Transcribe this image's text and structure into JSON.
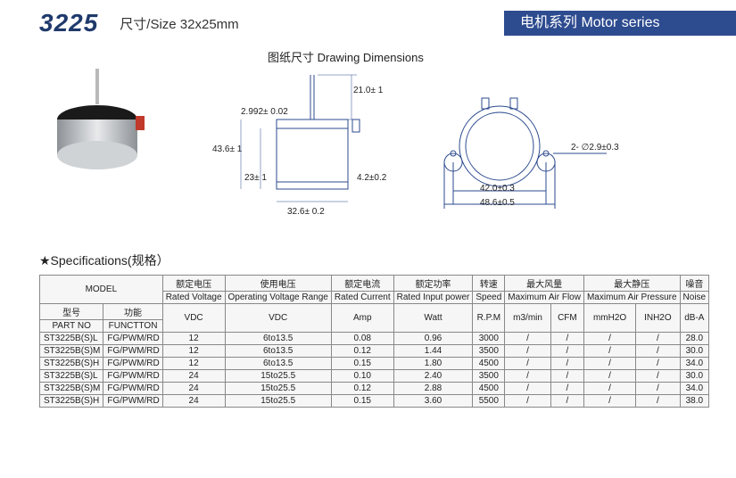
{
  "header": {
    "model": "3225",
    "size": "尺寸/Size 32x25mm",
    "series": "电机系列 Motor series"
  },
  "drawing": {
    "title": "图纸尺寸 Drawing Dimensions",
    "dims": {
      "shaft_len": "21.0± 1",
      "shaft_dia": "2.992± 0.02",
      "body_h": "43.6± 1",
      "body_half": "23± 1",
      "body_dia": "32.6± 0.2",
      "flange_thk": "4.2±0.2",
      "hole_pitch": "42.0±0.3",
      "flange_w": "48.6±0.5",
      "hole_dia": "2- ∅2.9±0.3"
    }
  },
  "spec": {
    "title": "★Specifications(规格）",
    "hdr_model": "MODEL",
    "hdr_partno_cn": "型号",
    "hdr_func_cn": "功能",
    "hdr_partno_en": "PART NO",
    "hdr_func_en": "FUNCTTON",
    "cols_cn": [
      "额定电压",
      "使用电压",
      "额定电流",
      "额定功率",
      "转速",
      "最大风量",
      "最大静压",
      "噪音"
    ],
    "cols_en": [
      "Rated Voltage",
      "Operating Voltage Range",
      "Rated Current",
      "Rated Input power",
      "Speed",
      "Maximum Air Flow",
      "Maximum Air Pressure",
      "Noise"
    ],
    "units": [
      "VDC",
      "VDC",
      "Amp",
      "Watt",
      "R.P.M",
      "m3/min",
      "CFM",
      "mmH2O",
      "INH2O",
      "dB-A"
    ],
    "rows": [
      {
        "part": "ST3225B(S)L",
        "func": "FG/PWM/RD",
        "v": "12",
        "vr": "6to13.5",
        "amp": "0.08",
        "w": "0.96",
        "rpm": "3000",
        "af1": "/",
        "af2": "/",
        "ap1": "/",
        "ap2": "/",
        "db": "28.0"
      },
      {
        "part": "ST3225B(S)M",
        "func": "FG/PWM/RD",
        "v": "12",
        "vr": "6to13.5",
        "amp": "0.12",
        "w": "1.44",
        "rpm": "3500",
        "af1": "/",
        "af2": "/",
        "ap1": "/",
        "ap2": "/",
        "db": "30.0"
      },
      {
        "part": "ST3225B(S)H",
        "func": "FG/PWM/RD",
        "v": "12",
        "vr": "6to13.5",
        "amp": "0.15",
        "w": "1.80",
        "rpm": "4500",
        "af1": "/",
        "af2": "/",
        "ap1": "/",
        "ap2": "/",
        "db": "34.0"
      },
      {
        "part": "ST3225B(S)L",
        "func": "FG/PWM/RD",
        "v": "24",
        "vr": "15to25.5",
        "amp": "0.10",
        "w": "2.40",
        "rpm": "3500",
        "af1": "/",
        "af2": "/",
        "ap1": "/",
        "ap2": "/",
        "db": "30.0"
      },
      {
        "part": "ST3225B(S)M",
        "func": "FG/PWM/RD",
        "v": "24",
        "vr": "15to25.5",
        "amp": "0.12",
        "w": "2.88",
        "rpm": "4500",
        "af1": "/",
        "af2": "/",
        "ap1": "/",
        "ap2": "/",
        "db": "34.0"
      },
      {
        "part": "ST3225B(S)H",
        "func": "FG/PWM/RD",
        "v": "24",
        "vr": "15to25.5",
        "amp": "0.15",
        "w": "3.60",
        "rpm": "5500",
        "af1": "/",
        "af2": "/",
        "ap1": "/",
        "ap2": "/",
        "db": "38.0"
      }
    ]
  }
}
